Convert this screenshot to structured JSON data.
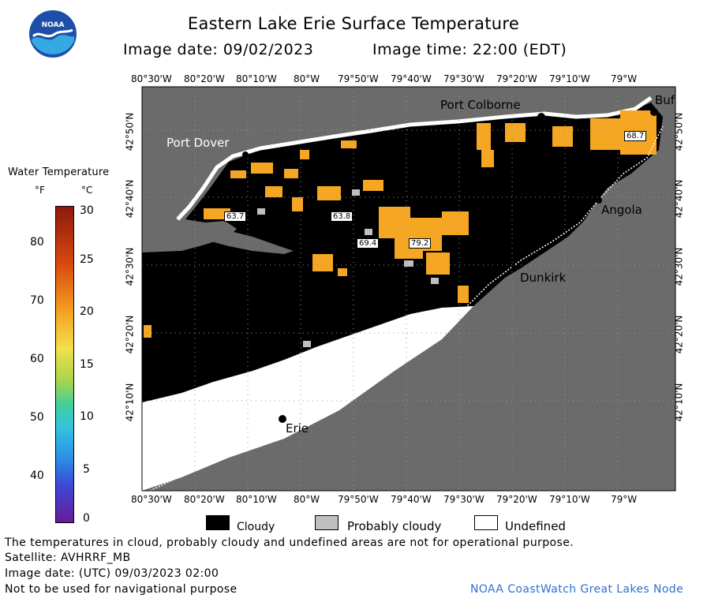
{
  "header": {
    "title": "Eastern Lake Erie Surface Temperature",
    "image_date_label": "Image date: 09/02/2023",
    "image_time_label": "Image time: 22:00 (EDT)"
  },
  "logo": {
    "text": "NOAA",
    "icon": "noaa-logo-icon"
  },
  "map": {
    "longitude_labels": [
      "80°30'W",
      "80°20'W",
      "80°10'W",
      "80°W",
      "79°50'W",
      "79°40'W",
      "79°30'W",
      "79°20'W",
      "79°10'W",
      "79°W"
    ],
    "latitude_labels": [
      "42°50'N",
      "42°40'N",
      "42°30'N",
      "42°20'N",
      "42°10'N"
    ],
    "places": [
      {
        "name": "Port Dover"
      },
      {
        "name": "Port Colborne"
      },
      {
        "name": "Buf"
      },
      {
        "name": "Angola"
      },
      {
        "name": "Dunkirk"
      },
      {
        "name": "Erie"
      }
    ],
    "temperature_readings": [
      "63.7",
      "63.8",
      "69.4",
      "79.2",
      "68.7"
    ],
    "colors": {
      "land": "#6b6b6b",
      "cloud": "#000000",
      "probably_cloudy": "#bfbfbf",
      "undefined": "#ffffff",
      "water_warm": "#f5a623",
      "grid": "#9a9a9a"
    }
  },
  "scale": {
    "title": "Water Temperature",
    "unit_f": "°F",
    "unit_c": "°C",
    "f_ticks": [
      "80",
      "70",
      "60",
      "50",
      "40"
    ],
    "c_ticks": [
      "30",
      "25",
      "20",
      "15",
      "10",
      "5",
      "0"
    ]
  },
  "legend": {
    "cloudy": "Cloudy",
    "probably_cloudy": "Probably cloudy",
    "undefined": "Undefined"
  },
  "footer": {
    "line1": "The temperatures in cloud, probably cloudy and undefined areas are not for operational purpose.",
    "line2": "Satellite: AVHRRF_MB",
    "line3": "Image date: (UTC) 09/03/2023  02:00",
    "line4": "Not to be used for navigational purpose",
    "credit": "NOAA CoastWatch Great Lakes Node"
  }
}
